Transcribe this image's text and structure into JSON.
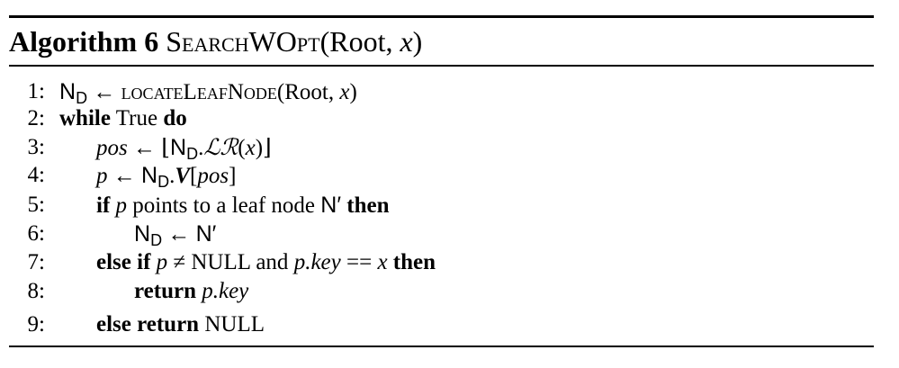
{
  "algorithm": {
    "label": "Algorithm 6",
    "procedure": "SearchWOpt",
    "args_open": "(Root, ",
    "arg_x": "x",
    "args_close": ")"
  },
  "lines": [
    {
      "num": "1:",
      "nd": "N",
      "nd_sub": "D",
      "arrow": " ← ",
      "func": "locateLeafNode",
      "args_open": "(Root, ",
      "x": "x",
      "args_close": ")"
    },
    {
      "num": "2:",
      "kw_while": "while",
      "cond": " True ",
      "kw_do": "do"
    },
    {
      "num": "3:",
      "pos": "pos",
      "arrow": " ← ",
      "floor_open": "⌊",
      "nd": "N",
      "nd_sub": "D",
      "dot": ".",
      "lr": "ℒℛ",
      "paren_open": "(",
      "x": "x",
      "paren_close": ")",
      "floor_close": "⌋"
    },
    {
      "num": "4:",
      "p": "p",
      "arrow": " ← ",
      "nd": "N",
      "nd_sub": "D",
      "dot": ".",
      "v": "V",
      "br_open": "[",
      "pos": "pos",
      "br_close": "]"
    },
    {
      "num": "5:",
      "kw_if": "if",
      "p": "p",
      "text": " points to a leaf node ",
      "nprime": "N′",
      "kw_then": "then"
    },
    {
      "num": "6:",
      "nd": "N",
      "nd_sub": "D",
      "arrow": " ← ",
      "nprime": "N′"
    },
    {
      "num": "7:",
      "kw_elseif": "else if",
      "p": "p",
      "neq": " ≠ NULL and ",
      "p2": "p",
      "key": ".key",
      "eq": " == ",
      "x": "x",
      "kw_then": "then"
    },
    {
      "num": "8:",
      "kw_return": "return",
      "p": "p",
      "key": ".key"
    },
    {
      "num": "9:",
      "kw_elsereturn": "else return",
      "null": " NULL"
    }
  ]
}
